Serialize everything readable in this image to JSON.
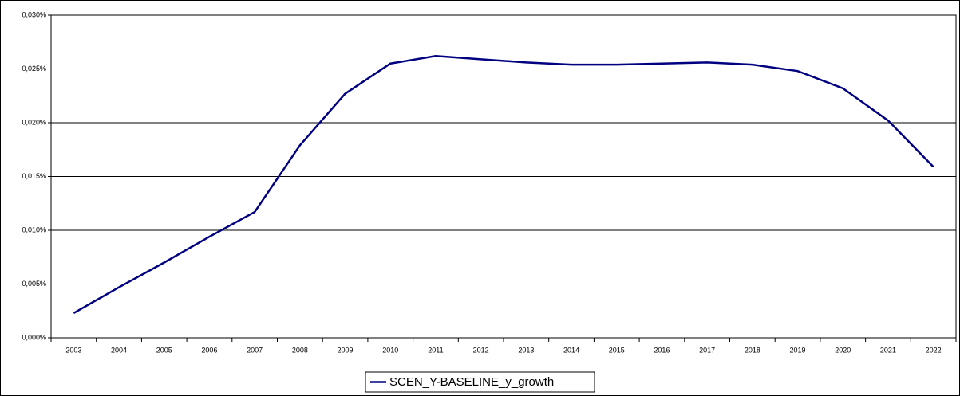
{
  "chart_data": {
    "type": "line",
    "categories": [
      "2003",
      "2004",
      "2005",
      "2006",
      "2007",
      "2008",
      "2009",
      "2010",
      "2011",
      "2012",
      "2013",
      "2014",
      "2015",
      "2016",
      "2017",
      "2018",
      "2019",
      "2020",
      "2021",
      "2022"
    ],
    "series": [
      {
        "name": "SCEN_Y-BASELINE_y_growth",
        "color": "#000080",
        "values": [
          0.0023,
          0.0047,
          0.007,
          0.0094,
          0.0117,
          0.0179,
          0.0227,
          0.0255,
          0.0262,
          0.0259,
          0.0256,
          0.0254,
          0.0254,
          0.0255,
          0.0256,
          0.0254,
          0.0248,
          0.0232,
          0.0202,
          0.0159
        ]
      }
    ],
    "ylim": [
      0,
      0.03
    ],
    "yticks": [
      {
        "value": 0,
        "label": "0,000%"
      },
      {
        "value": 0.005,
        "label": "0,005%"
      },
      {
        "value": 0.01,
        "label": "0,010%"
      },
      {
        "value": 0.015,
        "label": "0,015%"
      },
      {
        "value": 0.02,
        "label": "0,020%"
      },
      {
        "value": 0.025,
        "label": "0,025%"
      },
      {
        "value": 0.03,
        "label": "0,030%"
      }
    ],
    "grid": true,
    "legend": "bottom"
  }
}
